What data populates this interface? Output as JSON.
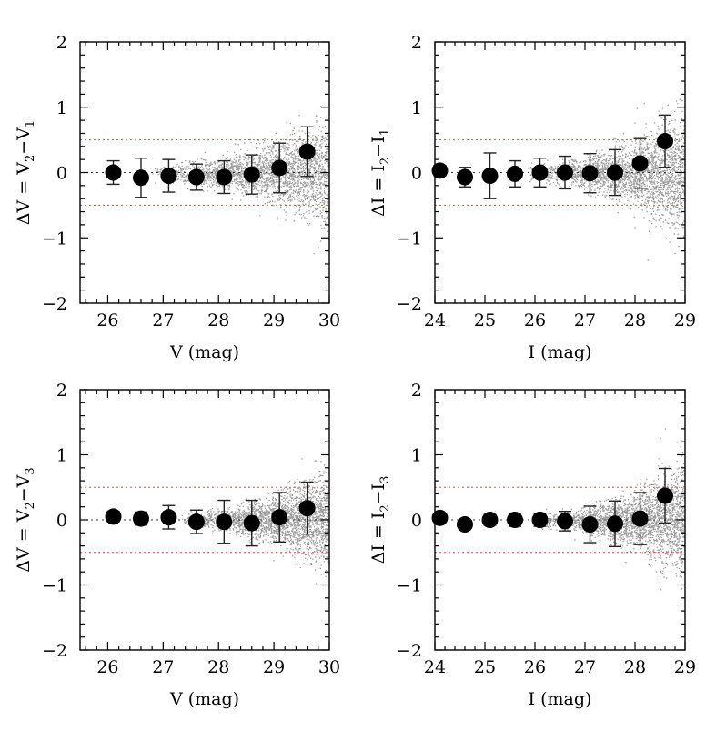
{
  "figure": {
    "chart_data": [
      {
        "type": "scatter",
        "panel": "top-left",
        "xlabel": "V (mag)",
        "ylabel": "ΔV = V2−V1",
        "ylabel_parts": {
          "prefix": "ΔV = V",
          "sub1": "2",
          "mid": "−V",
          "sub2": "1"
        },
        "xlim": [
          25.5,
          30.0
        ],
        "ylim": [
          -2,
          2
        ],
        "xticks": [
          26,
          27,
          28,
          29,
          30
        ],
        "yticks": [
          -2,
          -1,
          0,
          1,
          2
        ],
        "xtick_labels": [
          "26",
          "27",
          "28",
          "29",
          "30"
        ],
        "ytick_labels": [
          "−2",
          "−1",
          "0",
          "1",
          "2"
        ],
        "reference_lines": {
          "red_dotted": [
            0.5,
            -0.5
          ],
          "black_dotted": [
            0
          ]
        },
        "binned_points": {
          "x": [
            26.1,
            26.6,
            27.1,
            27.6,
            28.1,
            28.6,
            29.1,
            29.6
          ],
          "y": [
            0.0,
            -0.08,
            -0.05,
            -0.07,
            -0.07,
            -0.03,
            0.07,
            0.32
          ],
          "err": [
            0.18,
            0.3,
            0.25,
            0.2,
            0.25,
            0.3,
            0.38,
            0.38
          ]
        },
        "cloud": {
          "x_range": [
            26.8,
            30.0
          ],
          "spread": [
            0.12,
            0.75
          ]
        }
      },
      {
        "type": "scatter",
        "panel": "top-right",
        "xlabel": "I (mag)",
        "ylabel": "ΔI = I2−I1",
        "ylabel_parts": {
          "prefix": "ΔI = I",
          "sub1": "2",
          "mid": "−I",
          "sub2": "1"
        },
        "xlim": [
          24.0,
          29.0
        ],
        "ylim": [
          -2,
          2
        ],
        "xticks": [
          24,
          25,
          26,
          27,
          28,
          29
        ],
        "yticks": [
          -2,
          -1,
          0,
          1,
          2
        ],
        "xtick_labels": [
          "24",
          "25",
          "26",
          "27",
          "28",
          "29"
        ],
        "ytick_labels": [
          "−2",
          "−1",
          "0",
          "1",
          "2"
        ],
        "reference_lines": {
          "red_dotted": [
            0.5,
            -0.5
          ],
          "black_dotted": [
            0
          ]
        },
        "binned_points": {
          "x": [
            24.1,
            24.6,
            25.1,
            25.6,
            26.1,
            26.6,
            27.1,
            27.6,
            28.1,
            28.6
          ],
          "y": [
            0.03,
            -0.07,
            -0.05,
            -0.02,
            0.0,
            0.0,
            -0.01,
            0.0,
            0.14,
            0.48
          ],
          "err": [
            0.08,
            0.15,
            0.35,
            0.2,
            0.22,
            0.25,
            0.3,
            0.35,
            0.38,
            0.4
          ]
        },
        "cloud": {
          "x_range": [
            25.8,
            29.0
          ],
          "spread": [
            0.12,
            0.85
          ]
        }
      },
      {
        "type": "scatter",
        "panel": "bottom-left",
        "xlabel": "V (mag)",
        "ylabel": "ΔV = V2−V3",
        "ylabel_parts": {
          "prefix": "ΔV = V",
          "sub1": "2",
          "mid": "−V",
          "sub2": "3"
        },
        "xlim": [
          25.5,
          30.0
        ],
        "ylim": [
          -2,
          2
        ],
        "xticks": [
          26,
          27,
          28,
          29,
          30
        ],
        "yticks": [
          -2,
          -1,
          0,
          1,
          2
        ],
        "xtick_labels": [
          "26",
          "27",
          "28",
          "29",
          "30"
        ],
        "ytick_labels": [
          "−2",
          "−1",
          "0",
          "1",
          "2"
        ],
        "reference_lines": {
          "red_dotted": [
            0.5,
            -0.5
          ],
          "black_dotted": [
            0
          ]
        },
        "binned_points": {
          "x": [
            26.1,
            26.6,
            27.1,
            27.6,
            28.1,
            28.6,
            29.1,
            29.6
          ],
          "y": [
            0.05,
            0.02,
            0.04,
            -0.03,
            -0.03,
            -0.05,
            0.04,
            0.18
          ],
          "err": [
            0.08,
            0.1,
            0.18,
            0.18,
            0.33,
            0.35,
            0.38,
            0.4
          ]
        },
        "cloud": {
          "x_range": [
            27.3,
            30.0
          ],
          "spread": [
            0.1,
            0.7
          ]
        }
      },
      {
        "type": "scatter",
        "panel": "bottom-right",
        "xlabel": "I (mag)",
        "ylabel": "ΔI = I2−I3",
        "ylabel_parts": {
          "prefix": "ΔI = I",
          "sub1": "2",
          "mid": "−I",
          "sub2": "3"
        },
        "xlim": [
          24.0,
          29.0
        ],
        "ylim": [
          -2,
          2
        ],
        "xticks": [
          24,
          25,
          26,
          27,
          28,
          29
        ],
        "yticks": [
          -2,
          -1,
          0,
          1,
          2
        ],
        "xtick_labels": [
          "24",
          "25",
          "26",
          "27",
          "28",
          "29"
        ],
        "ytick_labels": [
          "−2",
          "−1",
          "0",
          "1",
          "2"
        ],
        "reference_lines": {
          "red_dotted": [
            0.5,
            -0.5
          ],
          "black_dotted": [
            0
          ]
        },
        "binned_points": {
          "x": [
            24.1,
            24.6,
            25.1,
            25.6,
            26.1,
            26.6,
            27.1,
            27.6,
            28.1,
            28.6
          ],
          "y": [
            0.03,
            -0.07,
            0.0,
            0.0,
            0.0,
            -0.02,
            -0.07,
            -0.06,
            0.02,
            0.37
          ],
          "err": [
            0.06,
            0.06,
            0.08,
            0.1,
            0.1,
            0.15,
            0.28,
            0.35,
            0.4,
            0.42
          ]
        },
        "cloud": {
          "x_range": [
            26.0,
            29.0
          ],
          "spread": [
            0.1,
            0.85
          ]
        }
      }
    ],
    "colors": {
      "cloud": "#9a9a9a",
      "points": "#000000",
      "ref_red": "#e04a4a",
      "ref_zero": "#333333",
      "frame": "#000000"
    }
  }
}
